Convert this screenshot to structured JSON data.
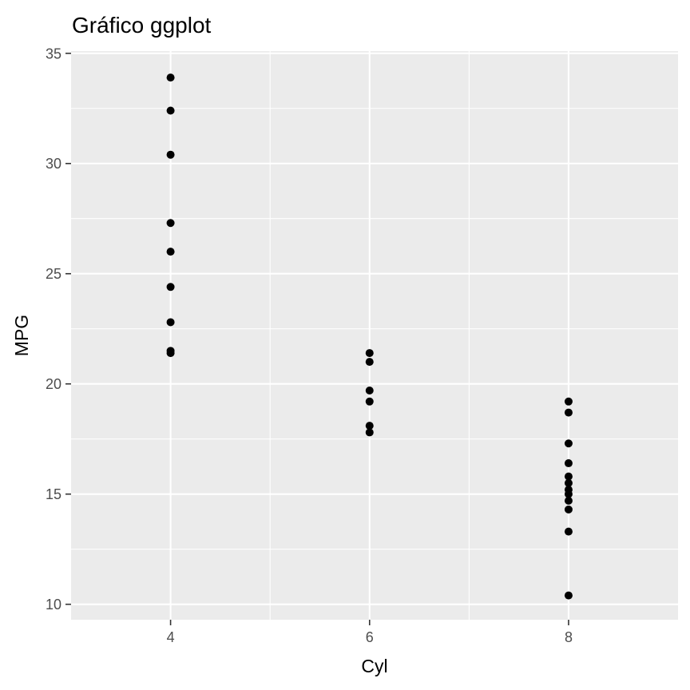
{
  "chart_data": {
    "type": "scatter",
    "title": "Gráfico ggplot",
    "xlabel": "Cyl",
    "ylabel": "MPG",
    "xlim": [
      3,
      9.1
    ],
    "ylim": [
      9.3,
      35.1
    ],
    "x_ticks": [
      4,
      6,
      8
    ],
    "y_ticks": [
      10,
      15,
      20,
      25,
      30,
      35
    ],
    "grid": true,
    "panel_background": "#ebebeb",
    "grid_color": "#ffffff",
    "point_color": "#000000",
    "points": [
      {
        "x": 4,
        "y": 33.9
      },
      {
        "x": 4,
        "y": 32.4
      },
      {
        "x": 4,
        "y": 30.4
      },
      {
        "x": 4,
        "y": 27.3
      },
      {
        "x": 4,
        "y": 26.0
      },
      {
        "x": 4,
        "y": 24.4
      },
      {
        "x": 4,
        "y": 22.8
      },
      {
        "x": 4,
        "y": 21.5
      },
      {
        "x": 4,
        "y": 21.4
      },
      {
        "x": 6,
        "y": 21.4
      },
      {
        "x": 6,
        "y": 21.0
      },
      {
        "x": 6,
        "y": 19.7
      },
      {
        "x": 6,
        "y": 19.2
      },
      {
        "x": 6,
        "y": 18.1
      },
      {
        "x": 6,
        "y": 17.8
      },
      {
        "x": 8,
        "y": 19.2
      },
      {
        "x": 8,
        "y": 18.7
      },
      {
        "x": 8,
        "y": 17.3
      },
      {
        "x": 8,
        "y": 16.4
      },
      {
        "x": 8,
        "y": 15.8
      },
      {
        "x": 8,
        "y": 15.5
      },
      {
        "x": 8,
        "y": 15.2
      },
      {
        "x": 8,
        "y": 15.0
      },
      {
        "x": 8,
        "y": 14.7
      },
      {
        "x": 8,
        "y": 14.3
      },
      {
        "x": 8,
        "y": 13.3
      },
      {
        "x": 8,
        "y": 10.4
      }
    ]
  }
}
